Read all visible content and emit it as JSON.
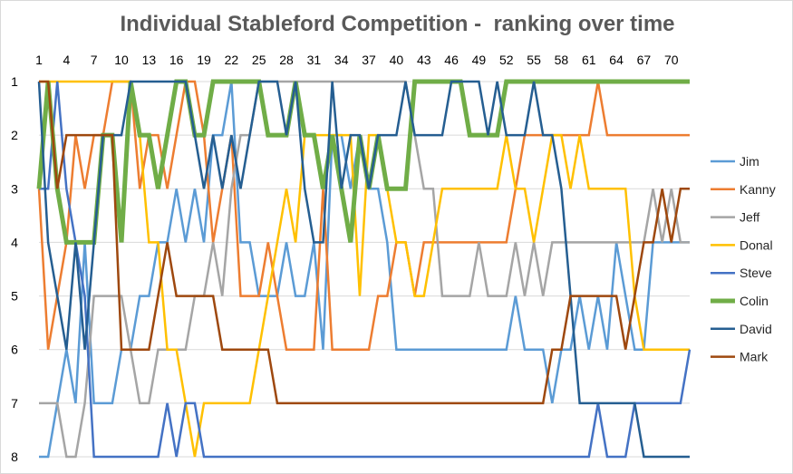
{
  "chart_data": {
    "type": "line",
    "title": "Individual Stableford Competition -  ranking over time",
    "xlabel": "",
    "ylabel": "",
    "x_tick_labels": [
      "1",
      "4",
      "7",
      "10",
      "13",
      "16",
      "19",
      "22",
      "25",
      "28",
      "31",
      "34",
      "37",
      "40",
      "43",
      "46",
      "49",
      "52",
      "55",
      "58",
      "61",
      "64",
      "67",
      "70"
    ],
    "y_tick_labels": [
      "1",
      "2",
      "3",
      "4",
      "5",
      "6",
      "7",
      "8"
    ],
    "xlim": [
      1,
      72
    ],
    "ylim": [
      1,
      8
    ],
    "y_inverted": true,
    "x_axis_position": "top",
    "grid": "horizontal",
    "legend_position": "right",
    "x": [
      1,
      2,
      3,
      4,
      5,
      6,
      7,
      8,
      9,
      10,
      11,
      12,
      13,
      14,
      15,
      16,
      17,
      18,
      19,
      20,
      21,
      22,
      23,
      24,
      25,
      26,
      27,
      28,
      29,
      30,
      31,
      32,
      33,
      34,
      35,
      36,
      37,
      38,
      39,
      40,
      41,
      42,
      43,
      44,
      45,
      46,
      47,
      48,
      49,
      50,
      51,
      52,
      53,
      54,
      55,
      56,
      57,
      58,
      59,
      60,
      61,
      62,
      63,
      64,
      65,
      66,
      67,
      68,
      69,
      70,
      71,
      72
    ],
    "series": [
      {
        "name": "Jim",
        "color": "#5B9BD5",
        "width": 2.5,
        "values": [
          8,
          8,
          7,
          6,
          7,
          4,
          7,
          7,
          7,
          6,
          6,
          5,
          5,
          4,
          4,
          3,
          4,
          3,
          4,
          2,
          2,
          1,
          4,
          4,
          5,
          5,
          5,
          4,
          5,
          5,
          4,
          6,
          2,
          2,
          3,
          2,
          3,
          3,
          4,
          6,
          6,
          6,
          6,
          6,
          6,
          6,
          6,
          6,
          6,
          6,
          6,
          6,
          5,
          6,
          6,
          6,
          7,
          6,
          6,
          5,
          6,
          5,
          6,
          4,
          5,
          6,
          6,
          4,
          4,
          4,
          4,
          4
        ]
      },
      {
        "name": "Kanny",
        "color": "#ED7D31",
        "width": 2.5,
        "values": [
          3,
          6,
          5,
          4,
          2,
          3,
          2,
          2,
          1,
          1,
          1,
          3,
          2,
          2,
          3,
          2,
          1,
          1,
          2,
          4,
          3,
          2,
          5,
          5,
          5,
          4,
          5,
          6,
          6,
          6,
          6,
          3,
          6,
          6,
          6,
          6,
          6,
          5,
          5,
          4,
          4,
          5,
          4,
          4,
          4,
          4,
          4,
          4,
          4,
          4,
          4,
          4,
          3,
          2,
          2,
          2,
          2,
          2,
          2,
          2,
          2,
          1,
          2,
          2,
          2,
          2,
          2,
          2,
          2,
          2,
          2,
          2
        ]
      },
      {
        "name": "Jeff",
        "color": "#A5A5A5",
        "width": 2.5,
        "values": [
          7,
          7,
          7,
          8,
          8,
          7,
          5,
          5,
          5,
          5,
          6,
          7,
          7,
          6,
          6,
          6,
          6,
          5,
          5,
          4,
          5,
          3,
          2,
          2,
          1,
          1,
          1,
          1,
          1,
          1,
          1,
          1,
          1,
          1,
          1,
          1,
          1,
          1,
          1,
          1,
          1,
          2,
          3,
          3,
          5,
          5,
          5,
          5,
          4,
          5,
          5,
          5,
          4,
          5,
          4,
          5,
          4,
          4,
          4,
          4,
          4,
          4,
          4,
          4,
          4,
          4,
          4,
          3,
          4,
          3,
          4,
          4
        ]
      },
      {
        "name": "Donal",
        "color": "#FFC000",
        "width": 2.5,
        "values": [
          1,
          1,
          1,
          1,
          1,
          1,
          1,
          1,
          1,
          1,
          1,
          2,
          4,
          4,
          6,
          6,
          7,
          8,
          7,
          7,
          7,
          7,
          7,
          7,
          6,
          5,
          4,
          3,
          4,
          2,
          2,
          2,
          2,
          2,
          2,
          5,
          2,
          2,
          3,
          4,
          4,
          5,
          5,
          4,
          3,
          3,
          3,
          3,
          3,
          3,
          3,
          2,
          3,
          3,
          4,
          3,
          2,
          2,
          3,
          2,
          3,
          3,
          3,
          3,
          3,
          5,
          6,
          6,
          6,
          6,
          6,
          6
        ]
      },
      {
        "name": "Steve",
        "color": "#4472C4",
        "width": 2.5,
        "values": [
          3,
          3,
          1,
          3,
          4,
          5,
          8,
          8,
          8,
          8,
          8,
          8,
          8,
          8,
          7,
          8,
          7,
          7,
          8,
          8,
          8,
          8,
          8,
          8,
          8,
          8,
          8,
          8,
          8,
          8,
          8,
          8,
          8,
          8,
          8,
          8,
          8,
          8,
          8,
          8,
          8,
          8,
          8,
          8,
          8,
          8,
          8,
          8,
          8,
          8,
          8,
          8,
          8,
          8,
          8,
          8,
          8,
          8,
          8,
          8,
          8,
          7,
          8,
          8,
          8,
          7,
          7,
          7,
          7,
          7,
          7,
          6
        ]
      },
      {
        "name": "Colin",
        "color": "#70AD47",
        "width": 5,
        "values": [
          3,
          1,
          3,
          4,
          4,
          4,
          4,
          2,
          2,
          4,
          1,
          2,
          2,
          3,
          2,
          1,
          1,
          2,
          2,
          1,
          1,
          1,
          1,
          1,
          1,
          2,
          2,
          2,
          1,
          2,
          2,
          3,
          2,
          3,
          4,
          2,
          3,
          2,
          3,
          3,
          3,
          1,
          1,
          1,
          1,
          1,
          1,
          2,
          2,
          2,
          2,
          1,
          1,
          1,
          1,
          1,
          1,
          1,
          1,
          1,
          1,
          1,
          1,
          1,
          1,
          1,
          1,
          1,
          1,
          1,
          1,
          1
        ]
      },
      {
        "name": "David",
        "color": "#255E91",
        "width": 2.5,
        "values": [
          1,
          4,
          5,
          6,
          4,
          6,
          4,
          2,
          2,
          2,
          1,
          1,
          1,
          1,
          1,
          1,
          1,
          2,
          3,
          2,
          3,
          2,
          3,
          2,
          1,
          1,
          1,
          2,
          1,
          3,
          4,
          4,
          1,
          3,
          2,
          2,
          3,
          2,
          2,
          2,
          1,
          2,
          2,
          2,
          2,
          1,
          1,
          1,
          1,
          2,
          1,
          2,
          2,
          2,
          1,
          2,
          2,
          3,
          5,
          7,
          7,
          7,
          7,
          7,
          7,
          7,
          8,
          8,
          8,
          8,
          8,
          8
        ]
      },
      {
        "name": "Mark",
        "color": "#9E480E",
        "width": 2.5,
        "values": [
          1,
          1,
          3,
          2,
          2,
          2,
          2,
          2,
          2,
          6,
          6,
          6,
          6,
          5,
          4,
          5,
          5,
          5,
          5,
          5,
          6,
          6,
          6,
          6,
          6,
          6,
          7,
          7,
          7,
          7,
          7,
          7,
          7,
          7,
          7,
          7,
          7,
          7,
          7,
          7,
          7,
          7,
          7,
          7,
          7,
          7,
          7,
          7,
          7,
          7,
          7,
          7,
          7,
          7,
          7,
          7,
          6,
          6,
          5,
          5,
          5,
          5,
          5,
          5,
          6,
          5,
          4,
          4,
          3,
          4,
          3,
          3
        ]
      }
    ]
  }
}
